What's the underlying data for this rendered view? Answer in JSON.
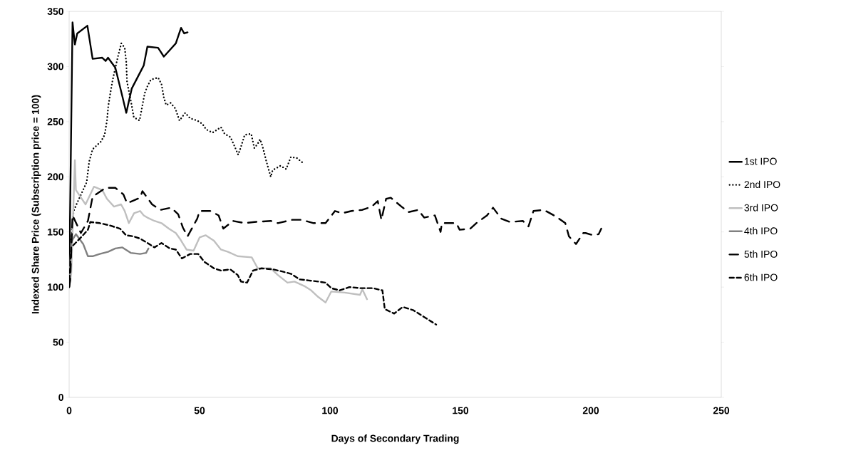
{
  "chart_data": {
    "type": "line",
    "xlabel": "Days of Secondary Trading",
    "ylabel": "Indexed Share Price (Subscription price = 100)",
    "xlim": [
      0,
      250
    ],
    "ylim": [
      0,
      350
    ],
    "xticks": [
      0,
      50,
      100,
      150,
      200,
      250
    ],
    "yticks": [
      0,
      50,
      100,
      150,
      200,
      250,
      300,
      350
    ],
    "legend": "right",
    "series": [
      {
        "name": "1st IPO",
        "color": "#000000",
        "line_style": "solid",
        "x": [
          0,
          1.3,
          2.2,
          3.1,
          7.0,
          9.0,
          12.7,
          14.0,
          14.9,
          17.7,
          20.4,
          21.9,
          24.0,
          28.6,
          30.0,
          34.1,
          36.3,
          38.6,
          40.9,
          42.9,
          44.1,
          45.4
        ],
        "values": [
          100,
          340,
          320,
          330,
          337,
          307,
          308,
          305,
          308,
          299,
          273,
          258,
          280,
          301,
          318,
          317,
          309,
          315,
          321,
          335,
          330,
          331
        ]
      },
      {
        "name": "2nd IPO",
        "color": "#000000",
        "line_style": "dotted",
        "x": [
          0,
          0.8,
          1.7,
          3,
          6.7,
          7.7,
          9,
          12.2,
          13.6,
          14.5,
          15,
          15.8,
          16.7,
          18.6,
          20,
          21.3,
          21.9,
          22.2,
          23.8,
          24.8,
          27,
          28.1,
          29,
          30,
          31.3,
          34.1,
          35.4,
          36.3,
          37.2,
          38.9,
          40.7,
          42.3,
          44.5,
          46.4,
          49.1,
          51.1,
          52.5,
          55,
          58.2,
          59.6,
          61.8,
          63,
          64.8,
          65.7,
          67.3,
          69.8,
          71,
          72.3,
          73.2,
          74.1,
          75.5,
          76.2,
          77.3,
          78,
          81,
          83.2,
          85,
          87.3,
          89.4
        ],
        "values": [
          105,
          140,
          169,
          176,
          195,
          214,
          225,
          232,
          238,
          251,
          264,
          276,
          288,
          308,
          321,
          317,
          304,
          286,
          267,
          254,
          251,
          265,
          276,
          282,
          288,
          290,
          284,
          272,
          265,
          267,
          262,
          251,
          258,
          253,
          251,
          248,
          243,
          240,
          245,
          239,
          236,
          230,
          220,
          226,
          238,
          239,
          226,
          230,
          234,
          228,
          215,
          209,
          200,
          206,
          210,
          207,
          218,
          217,
          213
        ]
      },
      {
        "name": "3rd IPO",
        "color": "#bfbfbf",
        "line_style": "solid",
        "x": [
          0,
          0.8,
          2.2,
          2.6,
          6.3,
          9.5,
          12.7,
          14.5,
          17.2,
          19.9,
          21.3,
          22.9,
          24.9,
          27.2,
          28.6,
          30,
          32.7,
          35.4,
          38.2,
          40.9,
          42.7,
          45,
          47.7,
          50,
          52.3,
          55.5,
          58.2,
          60.9,
          64.6,
          70,
          72.3,
          77.3,
          80,
          83.7,
          86.4,
          90.1,
          92.8,
          95.5,
          98.3,
          100.5,
          105.6,
          111.5,
          112.4,
          114.2
        ],
        "values": [
          100,
          112,
          215,
          188,
          175,
          191,
          188,
          180,
          173,
          175,
          169,
          158,
          167,
          169,
          165,
          163,
          160,
          158,
          153,
          149,
          143,
          134,
          133,
          145,
          147,
          142,
          134,
          132,
          128,
          127,
          117,
          117,
          111,
          104,
          105,
          101,
          97,
          91,
          86,
          96,
          95,
          93,
          98,
          89
        ]
      },
      {
        "name": "4th IPO",
        "color": "#808080",
        "line_style": "solid",
        "x": [
          0,
          0.8,
          2.6,
          5.4,
          7.2,
          9,
          11.7,
          14.9,
          17.7,
          20.4,
          23.6,
          27.2,
          29.5,
          30.4
        ],
        "values": [
          100,
          141,
          148,
          139,
          128,
          128,
          130,
          132,
          135,
          136,
          131,
          130,
          131,
          135
        ]
      },
      {
        "name": "5th IPO",
        "color": "#000000",
        "line_style": "dashed",
        "x": [
          0,
          0.4,
          1.3,
          4.5,
          7.2,
          9,
          14,
          17.7,
          20.8,
          22.2,
          27.2,
          28.1,
          31.8,
          35,
          39.1,
          41.8,
          43.6,
          45.4,
          49.1,
          50,
          54.1,
          57.3,
          59.1,
          62.8,
          67.3,
          71,
          77.3,
          80,
          85.5,
          89.2,
          93.7,
          98.3,
          101.9,
          104.6,
          108.3,
          112.4,
          116,
          118.3,
          119.7,
          121.5,
          123.3,
          127.4,
          130.1,
          133.8,
          136.1,
          140.2,
          142.4,
          142.9,
          148.4,
          149.7,
          153.8,
          156.1,
          160.2,
          162.5,
          165.7,
          169,
          173.9,
          176.1,
          178,
          182,
          186.6,
          190.2,
          191.6,
          194.3,
          197.1,
          198,
          201,
          203,
          204
        ],
        "values": [
          100,
          106,
          165,
          149,
          160,
          182,
          190,
          190,
          184,
          176,
          181,
          187,
          175,
          170,
          172,
          166,
          154,
          146,
          162,
          169,
          169,
          165,
          153,
          160,
          158,
          159,
          160,
          158,
          161,
          161,
          158,
          158,
          169,
          167,
          169,
          170,
          173,
          178,
          161,
          180,
          181,
          173,
          168,
          170,
          163,
          165,
          150,
          158,
          158,
          152,
          153,
          158,
          165,
          172,
          162,
          159,
          160,
          155,
          169,
          170,
          164,
          158,
          146,
          139,
          149,
          149,
          147,
          148,
          153
        ]
      },
      {
        "name": "6th IPO",
        "color": "#000000",
        "line_style": "dashed",
        "x": [
          0,
          0.8,
          4.9,
          7.2,
          8.1,
          11.7,
          15.4,
          19.5,
          21.8,
          24.5,
          27.2,
          30,
          32.7,
          35.4,
          38.6,
          40.9,
          43.2,
          46.4,
          49.5,
          51.8,
          55.5,
          58.2,
          61.8,
          64.6,
          65.9,
          68.2,
          70.5,
          73.7,
          78.3,
          81.9,
          85.1,
          88.3,
          91.9,
          95.5,
          98.3,
          100.5,
          103.7,
          107.4,
          111.9,
          116.5,
          120.1,
          121,
          124.6,
          127.9,
          132,
          136,
          140.7
        ],
        "values": [
          100,
          136,
          146,
          152,
          159,
          158,
          156,
          153,
          147,
          146,
          144,
          140,
          136,
          140,
          135,
          134,
          126,
          130,
          130,
          123,
          117,
          115,
          116,
          111,
          105,
          104,
          115,
          117,
          116,
          114,
          112,
          107,
          106,
          105,
          104,
          99,
          97,
          100,
          99,
          99,
          97,
          80,
          76,
          82,
          79,
          73,
          66
        ]
      }
    ]
  }
}
